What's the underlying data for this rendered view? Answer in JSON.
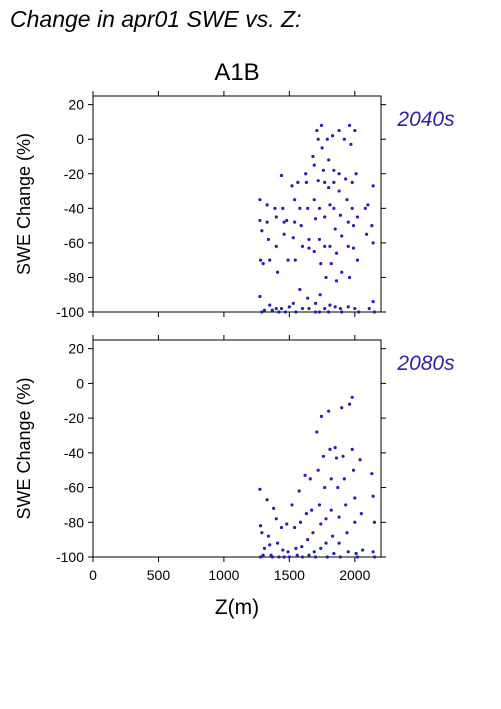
{
  "page": {
    "title": "Change in apr01 SWE vs. Z:",
    "scenario": "A1B"
  },
  "colors": {
    "points": "#2121b8",
    "decade_label": "#2626a8",
    "axes": "#000000"
  },
  "chart_data": [
    {
      "type": "scatter",
      "panel_label": "2040s",
      "xlabel": "Z(m)",
      "ylabel": "SWE Change (%)",
      "xlim": [
        0,
        2200
      ],
      "ylim": [
        -100,
        25
      ],
      "xticks": [
        0,
        500,
        1000,
        1500,
        2000
      ],
      "yticks": [
        -100,
        -80,
        -60,
        -40,
        -20,
        0,
        20
      ],
      "x_tick_labels_shown": false,
      "points": [
        [
          1275,
          -35
        ],
        [
          1275,
          -47
        ],
        [
          1290,
          -53
        ],
        [
          1280,
          -70
        ],
        [
          1300,
          -72
        ],
        [
          1275,
          -91
        ],
        [
          1290,
          -100
        ],
        [
          1310,
          -99
        ],
        [
          1330,
          -38
        ],
        [
          1330,
          -48
        ],
        [
          1340,
          -58
        ],
        [
          1350,
          -70
        ],
        [
          1350,
          -96
        ],
        [
          1370,
          -99
        ],
        [
          1390,
          -40
        ],
        [
          1400,
          -45
        ],
        [
          1400,
          -62
        ],
        [
          1410,
          -77
        ],
        [
          1400,
          -98
        ],
        [
          1420,
          -100
        ],
        [
          1440,
          -21
        ],
        [
          1450,
          -40
        ],
        [
          1460,
          -48
        ],
        [
          1460,
          -55
        ],
        [
          1440,
          -98
        ],
        [
          1470,
          -100
        ],
        [
          1480,
          -47
        ],
        [
          1490,
          -70
        ],
        [
          1500,
          -97
        ],
        [
          1520,
          -27
        ],
        [
          1540,
          -35
        ],
        [
          1540,
          -48
        ],
        [
          1530,
          -57
        ],
        [
          1545,
          -70
        ],
        [
          1530,
          -95
        ],
        [
          1550,
          -100
        ],
        [
          1565,
          -25
        ],
        [
          1580,
          -40
        ],
        [
          1590,
          -50
        ],
        [
          1600,
          -62
        ],
        [
          1580,
          -87
        ],
        [
          1600,
          -98
        ],
        [
          1625,
          -20
        ],
        [
          1630,
          -25
        ],
        [
          1640,
          -40
        ],
        [
          1650,
          -58
        ],
        [
          1650,
          -63
        ],
        [
          1640,
          -92
        ],
        [
          1650,
          -98
        ],
        [
          1680,
          -10
        ],
        [
          1690,
          -15
        ],
        [
          1690,
          -35
        ],
        [
          1700,
          -46
        ],
        [
          1690,
          -65
        ],
        [
          1700,
          -95
        ],
        [
          1700,
          -100
        ],
        [
          1710,
          5
        ],
        [
          1720,
          0
        ],
        [
          1720,
          -24
        ],
        [
          1730,
          -40
        ],
        [
          1730,
          -58
        ],
        [
          1740,
          -72
        ],
        [
          1735,
          -90
        ],
        [
          1730,
          -100
        ],
        [
          1745,
          8
        ],
        [
          1750,
          -5
        ],
        [
          1760,
          -18
        ],
        [
          1770,
          -25
        ],
        [
          1770,
          -45
        ],
        [
          1770,
          -62
        ],
        [
          1780,
          -80
        ],
        [
          1770,
          -98
        ],
        [
          1790,
          0
        ],
        [
          1800,
          -12
        ],
        [
          1800,
          -28
        ],
        [
          1810,
          -38
        ],
        [
          1810,
          -62
        ],
        [
          1820,
          -72
        ],
        [
          1810,
          -96
        ],
        [
          1800,
          -100
        ],
        [
          1830,
          2
        ],
        [
          1840,
          -18
        ],
        [
          1840,
          -25
        ],
        [
          1840,
          -40
        ],
        [
          1850,
          -52
        ],
        [
          1860,
          -66
        ],
        [
          1860,
          -82
        ],
        [
          1850,
          -97
        ],
        [
          1880,
          5
        ],
        [
          1880,
          -20
        ],
        [
          1880,
          -30
        ],
        [
          1890,
          -44
        ],
        [
          1900,
          -56
        ],
        [
          1900,
          -77
        ],
        [
          1890,
          -98
        ],
        [
          1900,
          -100
        ],
        [
          1920,
          0
        ],
        [
          1930,
          -23
        ],
        [
          1940,
          -35
        ],
        [
          1950,
          -48
        ],
        [
          1950,
          -62
        ],
        [
          1960,
          -80
        ],
        [
          1950,
          -97
        ],
        [
          1960,
          8
        ],
        [
          1970,
          -3
        ],
        [
          1980,
          -25
        ],
        [
          1980,
          -40
        ],
        [
          1990,
          -50
        ],
        [
          1990,
          -63
        ],
        [
          2000,
          -98
        ],
        [
          2000,
          5
        ],
        [
          2010,
          -20
        ],
        [
          2020,
          -45
        ],
        [
          2020,
          -70
        ],
        [
          2030,
          -100
        ],
        [
          2080,
          -40
        ],
        [
          2090,
          -55
        ],
        [
          2100,
          -38
        ],
        [
          2110,
          -98
        ],
        [
          2130,
          -50
        ],
        [
          2140,
          -27
        ],
        [
          2140,
          -60
        ],
        [
          2140,
          -94
        ],
        [
          2150,
          -100
        ]
      ]
    },
    {
      "type": "scatter",
      "panel_label": "2080s",
      "xlabel": "Z(m)",
      "ylabel": "SWE Change (%)",
      "xlim": [
        0,
        2200
      ],
      "ylim": [
        -100,
        25
      ],
      "xticks": [
        0,
        500,
        1000,
        1500,
        2000
      ],
      "yticks": [
        -100,
        -80,
        -60,
        -40,
        -20,
        0,
        20
      ],
      "points": [
        [
          1275,
          -61
        ],
        [
          1280,
          -82
        ],
        [
          1290,
          -86
        ],
        [
          1300,
          -99
        ],
        [
          1280,
          -100
        ],
        [
          1310,
          -95
        ],
        [
          1330,
          -67
        ],
        [
          1340,
          -88
        ],
        [
          1350,
          -93
        ],
        [
          1360,
          -99
        ],
        [
          1370,
          -100
        ],
        [
          1380,
          -72
        ],
        [
          1400,
          -78
        ],
        [
          1410,
          -92
        ],
        [
          1420,
          -100
        ],
        [
          1440,
          -83
        ],
        [
          1450,
          -96
        ],
        [
          1460,
          -100
        ],
        [
          1480,
          -81
        ],
        [
          1490,
          -97
        ],
        [
          1500,
          -100
        ],
        [
          1520,
          -70
        ],
        [
          1540,
          -83
        ],
        [
          1550,
          -95
        ],
        [
          1560,
          -99
        ],
        [
          1575,
          -62
        ],
        [
          1585,
          -80
        ],
        [
          1595,
          -94
        ],
        [
          1600,
          -100
        ],
        [
          1620,
          -53
        ],
        [
          1630,
          -75
        ],
        [
          1640,
          -90
        ],
        [
          1650,
          -99
        ],
        [
          1660,
          -55
        ],
        [
          1670,
          -73
        ],
        [
          1680,
          -86
        ],
        [
          1690,
          -97
        ],
        [
          1700,
          -100
        ],
        [
          1710,
          -28
        ],
        [
          1720,
          -50
        ],
        [
          1730,
          -70
        ],
        [
          1740,
          -81
        ],
        [
          1740,
          -95
        ],
        [
          1745,
          -19
        ],
        [
          1760,
          -42
        ],
        [
          1770,
          -60
        ],
        [
          1780,
          -78
        ],
        [
          1780,
          -92
        ],
        [
          1790,
          -100
        ],
        [
          1800,
          -16
        ],
        [
          1810,
          -38
        ],
        [
          1820,
          -55
        ],
        [
          1820,
          -73
        ],
        [
          1830,
          -88
        ],
        [
          1840,
          -98
        ],
        [
          1850,
          -37
        ],
        [
          1860,
          -43
        ],
        [
          1870,
          -60
        ],
        [
          1880,
          -77
        ],
        [
          1880,
          -92
        ],
        [
          1890,
          -100
        ],
        [
          1900,
          -14
        ],
        [
          1910,
          -42
        ],
        [
          1920,
          -55
        ],
        [
          1930,
          -70
        ],
        [
          1940,
          -86
        ],
        [
          1950,
          -97
        ],
        [
          1960,
          -12
        ],
        [
          1980,
          -8
        ],
        [
          1980,
          -38
        ],
        [
          1990,
          -50
        ],
        [
          2000,
          -66
        ],
        [
          2000,
          -80
        ],
        [
          2010,
          -98
        ],
        [
          2020,
          -100
        ],
        [
          2040,
          -44
        ],
        [
          2050,
          -75
        ],
        [
          2060,
          -96
        ],
        [
          2130,
          -52
        ],
        [
          2140,
          -65
        ],
        [
          2150,
          -80
        ],
        [
          2140,
          -97
        ],
        [
          2150,
          -100
        ]
      ]
    }
  ]
}
